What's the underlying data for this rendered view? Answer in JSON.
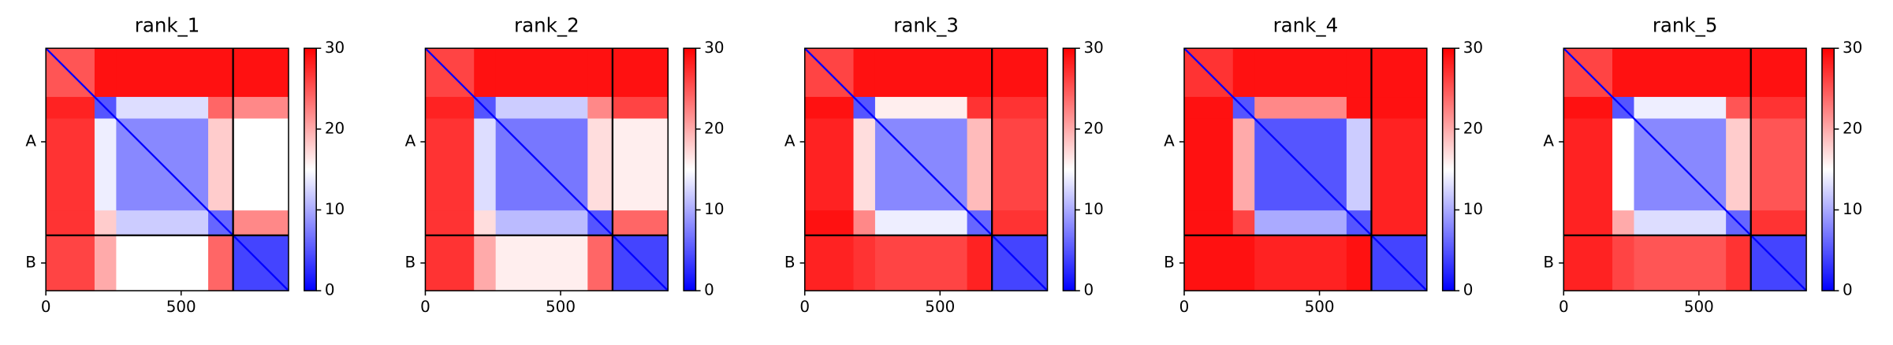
{
  "chart_data": [
    {
      "type": "heatmap",
      "title": "rank_1",
      "xlim": [
        0,
        897
      ],
      "ylim": [
        897,
        0
      ],
      "xticks": [
        0,
        500
      ],
      "categories": [
        "A",
        "B"
      ],
      "chain_breaks": [
        692
      ],
      "segments": [
        0,
        180,
        260,
        600,
        692,
        897
      ],
      "values": [
        [
          25,
          29,
          29,
          29,
          29
        ],
        [
          28,
          5,
          13,
          24,
          22
        ],
        [
          27,
          14,
          8,
          18,
          15
        ],
        [
          27,
          18,
          12,
          6,
          22
        ],
        [
          26,
          20,
          15,
          24,
          4
        ]
      ],
      "cmap": "bwr",
      "clim": [
        0,
        30
      ],
      "cticks": [
        0,
        10,
        20,
        30
      ]
    },
    {
      "type": "heatmap",
      "title": "rank_2",
      "xlim": [
        0,
        897
      ],
      "ylim": [
        897,
        0
      ],
      "xticks": [
        0,
        500
      ],
      "categories": [
        "A",
        "B"
      ],
      "chain_breaks": [
        692
      ],
      "segments": [
        0,
        180,
        260,
        600,
        692,
        897
      ],
      "values": [
        [
          26,
          29,
          29,
          29,
          29
        ],
        [
          28,
          5,
          12,
          22,
          26
        ],
        [
          27,
          13,
          7,
          17,
          16
        ],
        [
          27,
          17,
          11,
          5,
          24
        ],
        [
          27,
          20,
          16,
          24,
          4
        ]
      ],
      "cmap": "bwr",
      "clim": [
        0,
        30
      ],
      "cticks": [
        0,
        10,
        20,
        30
      ]
    },
    {
      "type": "heatmap",
      "title": "rank_3",
      "xlim": [
        0,
        897
      ],
      "ylim": [
        897,
        0
      ],
      "xticks": [
        0,
        500
      ],
      "categories": [
        "A",
        "B"
      ],
      "chain_breaks": [
        692
      ],
      "segments": [
        0,
        180,
        260,
        600,
        692,
        897
      ],
      "values": [
        [
          26,
          29,
          29,
          29,
          29
        ],
        [
          29,
          5,
          16,
          27,
          27
        ],
        [
          28,
          17,
          8,
          19,
          26
        ],
        [
          29,
          22,
          14,
          6,
          27
        ],
        [
          28,
          27,
          26,
          28,
          4
        ]
      ],
      "cmap": "bwr",
      "clim": [
        0,
        30
      ],
      "cticks": [
        0,
        10,
        20,
        30
      ]
    },
    {
      "type": "heatmap",
      "title": "rank_4",
      "xlim": [
        0,
        897
      ],
      "ylim": [
        897,
        0
      ],
      "xticks": [
        0,
        500
      ],
      "categories": [
        "A",
        "B"
      ],
      "chain_breaks": [
        692
      ],
      "segments": [
        0,
        180,
        260,
        600,
        692,
        897
      ],
      "values": [
        [
          27,
          29,
          29,
          29,
          29
        ],
        [
          29,
          5,
          22,
          29,
          29
        ],
        [
          29,
          20,
          5,
          12,
          28
        ],
        [
          29,
          26,
          10,
          5,
          28
        ],
        [
          29,
          29,
          28,
          29,
          4
        ]
      ],
      "cmap": "bwr",
      "clim": [
        0,
        30
      ],
      "cticks": [
        0,
        10,
        20,
        30
      ]
    },
    {
      "type": "heatmap",
      "title": "rank_5",
      "xlim": [
        0,
        897
      ],
      "ylim": [
        897,
        0
      ],
      "xticks": [
        0,
        500
      ],
      "categories": [
        "A",
        "B"
      ],
      "chain_breaks": [
        692
      ],
      "segments": [
        0,
        180,
        260,
        600,
        692,
        897
      ],
      "values": [
        [
          26,
          29,
          29,
          29,
          29
        ],
        [
          29,
          5,
          14,
          25,
          27
        ],
        [
          28,
          15,
          8,
          18,
          25
        ],
        [
          28,
          20,
          13,
          6,
          27
        ],
        [
          28,
          26,
          25,
          27,
          4
        ]
      ],
      "cmap": "bwr",
      "clim": [
        0,
        30
      ],
      "cticks": [
        0,
        10,
        20,
        30
      ]
    }
  ]
}
